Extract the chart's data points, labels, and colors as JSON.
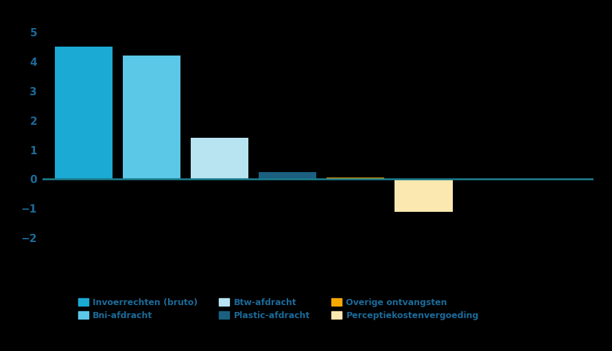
{
  "bars": [
    {
      "label": "Invoerrechten (bruto)",
      "value": 4.5,
      "color": "#1AAAD4"
    },
    {
      "label": "Bni-afdracht",
      "value": 4.2,
      "color": "#5BC8E8"
    },
    {
      "label": "Btw-afdracht",
      "value": 1.4,
      "color": "#B8E4F2"
    },
    {
      "label": "Plastic-afdracht",
      "value": 0.233,
      "color": "#1B6080"
    },
    {
      "label": "Overige ontvangsten",
      "value": 0.05,
      "color": "#F5A800"
    },
    {
      "label": "Perceptiekostenvergoeding",
      "value": -1.1,
      "color": "#FAE8B0"
    }
  ],
  "ylim": [
    -2.5,
    5.5
  ],
  "yticks": [
    -2,
    -1,
    0,
    1,
    2,
    3,
    4,
    5
  ],
  "background_color": "#000000",
  "text_color": "#1B6B9A",
  "axis_line_color": "#1B7A8A",
  "legend_ncol": 3,
  "bar_width": 0.85,
  "legend_order": [
    "Invoerrechten (bruto)",
    "Bni-afdracht",
    "Btw-afdracht",
    "Plastic-afdracht",
    "Overige ontvangsten",
    "Perceptiekostenvergoeding"
  ]
}
